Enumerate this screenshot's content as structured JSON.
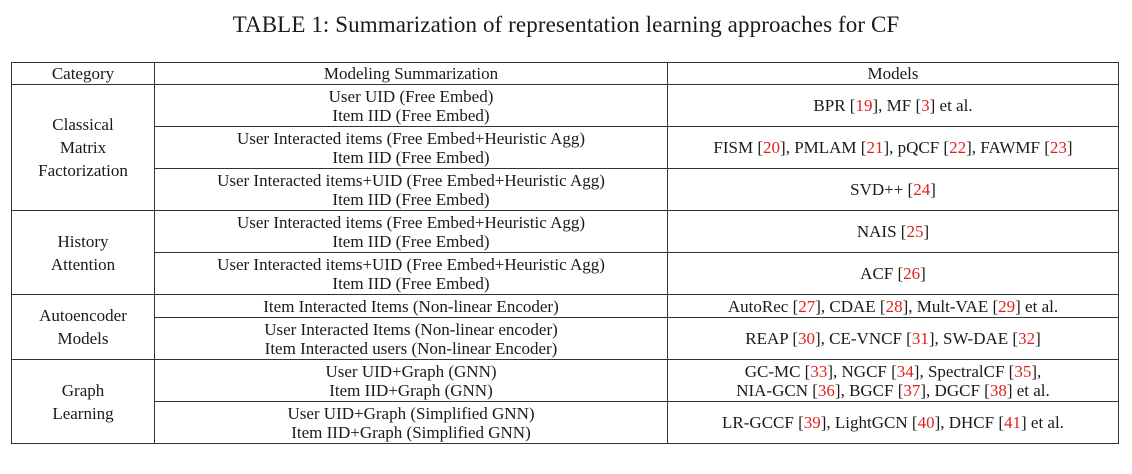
{
  "caption": "TABLE 1: Summarization of representation learning approaches for CF",
  "headers": [
    "Category",
    "Modeling Summarization",
    "Models"
  ],
  "groups": [
    {
      "category": [
        "Classical",
        "Matrix",
        "Factorization"
      ],
      "rows": [
        {
          "summary": [
            "User UID (Free Embed)",
            "Item IID (Free Embed)"
          ],
          "models": [
            [
              {
                "t": "BPR ["
              },
              {
                "r": "19"
              },
              {
                "t": "], MF ["
              },
              {
                "r": "3"
              },
              {
                "t": "] et al."
              }
            ]
          ]
        },
        {
          "summary": [
            "User Interacted items (Free Embed+Heuristic Agg)",
            "Item IID (Free Embed)"
          ],
          "models": [
            [
              {
                "t": "FISM ["
              },
              {
                "r": "20"
              },
              {
                "t": "], PMLAM ["
              },
              {
                "r": "21"
              },
              {
                "t": "], pQCF ["
              },
              {
                "r": "22"
              },
              {
                "t": "], FAWMF ["
              },
              {
                "r": "23"
              },
              {
                "t": "]"
              }
            ]
          ]
        },
        {
          "summary": [
            "User Interacted items+UID (Free Embed+Heuristic Agg)",
            "Item IID (Free Embed)"
          ],
          "models": [
            [
              {
                "t": "SVD++ ["
              },
              {
                "r": "24"
              },
              {
                "t": "]"
              }
            ]
          ]
        }
      ]
    },
    {
      "category": [
        "History",
        "Attention"
      ],
      "rows": [
        {
          "summary": [
            "User Interacted items (Free Embed+Heuristic Agg)",
            "Item IID (Free Embed)"
          ],
          "models": [
            [
              {
                "t": "NAIS ["
              },
              {
                "r": "25"
              },
              {
                "t": "]"
              }
            ]
          ]
        },
        {
          "summary": [
            "User Interacted items+UID (Free Embed+Heuristic Agg)",
            "Item IID (Free Embed)"
          ],
          "models": [
            [
              {
                "t": "ACF ["
              },
              {
                "r": "26"
              },
              {
                "t": "]"
              }
            ]
          ]
        }
      ]
    },
    {
      "category": [
        "Autoencoder",
        "Models"
      ],
      "rows": [
        {
          "summary": [
            "Item Interacted Items (Non-linear Encoder)"
          ],
          "models": [
            [
              {
                "t": "AutoRec ["
              },
              {
                "r": "27"
              },
              {
                "t": "], CDAE ["
              },
              {
                "r": "28"
              },
              {
                "t": "], Mult-VAE ["
              },
              {
                "r": "29"
              },
              {
                "t": "] et al."
              }
            ]
          ]
        },
        {
          "summary": [
            "User Interacted Items (Non-linear encoder)",
            "Item Interacted users (Non-linear Encoder)"
          ],
          "models": [
            [
              {
                "t": "REAP ["
              },
              {
                "r": "30"
              },
              {
                "t": "], CE-VNCF ["
              },
              {
                "r": "31"
              },
              {
                "t": "], SW-DAE ["
              },
              {
                "r": "32"
              },
              {
                "t": "]"
              }
            ]
          ]
        }
      ]
    },
    {
      "category": [
        "Graph",
        "Learning"
      ],
      "rows": [
        {
          "summary": [
            "User UID+Graph (GNN)",
            "Item IID+Graph (GNN)"
          ],
          "models": [
            [
              {
                "t": "GC-MC ["
              },
              {
                "r": "33"
              },
              {
                "t": "], NGCF ["
              },
              {
                "r": "34"
              },
              {
                "t": "], SpectralCF ["
              },
              {
                "r": "35"
              },
              {
                "t": "],"
              }
            ],
            [
              {
                "t": "NIA-GCN ["
              },
              {
                "r": "36"
              },
              {
                "t": "], BGCF ["
              },
              {
                "r": "37"
              },
              {
                "t": "], DGCF ["
              },
              {
                "r": "38"
              },
              {
                "t": "] et al."
              }
            ]
          ]
        },
        {
          "summary": [
            "User UID+Graph (Simplified GNN)",
            "Item IID+Graph (Simplified GNN)"
          ],
          "models": [
            [
              {
                "t": "LR-GCCF ["
              },
              {
                "r": "39"
              },
              {
                "t": "], LightGCN ["
              },
              {
                "r": "40"
              },
              {
                "t": "], DHCF ["
              },
              {
                "r": "41"
              },
              {
                "t": "] et al."
              }
            ]
          ]
        }
      ]
    }
  ],
  "colors": {
    "citation": "#e0211d",
    "text": "#1a1a1a",
    "border": "#333333"
  }
}
